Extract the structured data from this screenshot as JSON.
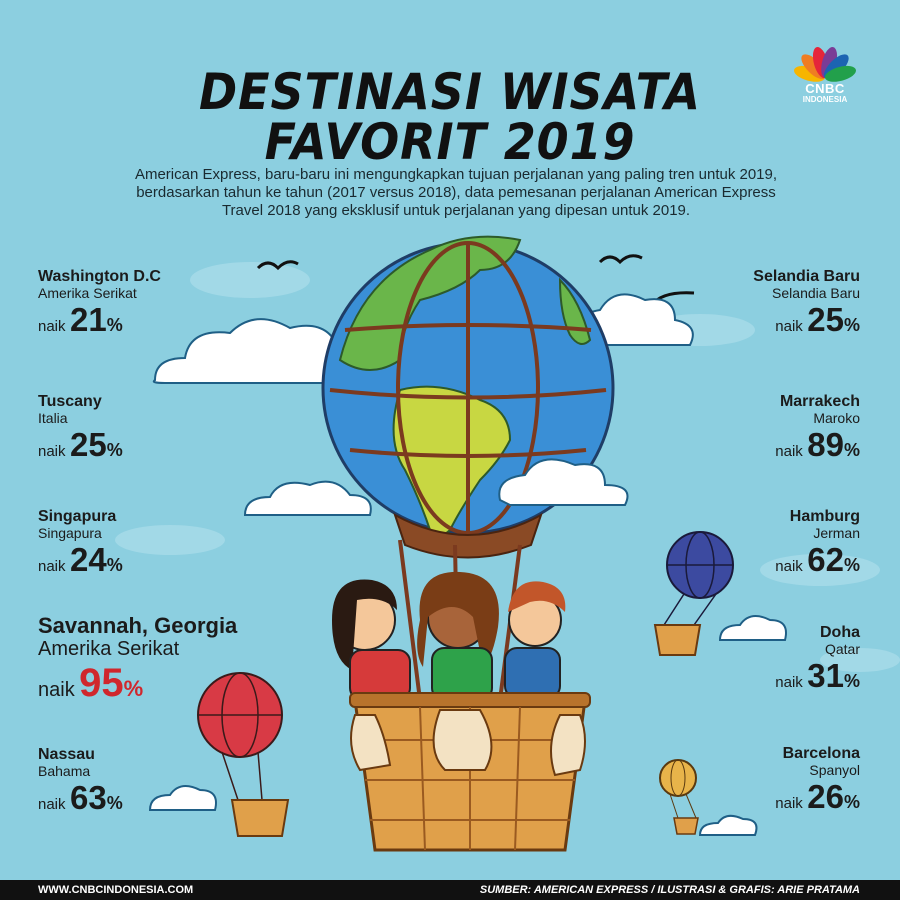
{
  "title_line1": "DESTINASI WISATA",
  "title_line2": "FAVORIT 2019",
  "intro": "American Express, baru-baru ini mengungkapkan tujuan perjalanan yang paling tren untuk 2019, berdasarkan tahun ke tahun (2017 versus 2018), data pemesanan perjalanan American Express Travel 2018 yang eksklusif untuk perjalanan yang dipesan untuk 2019.",
  "logo": {
    "brand": "CNBC",
    "sub": "INDONESIA",
    "colors": [
      "#f7b500",
      "#ef7d22",
      "#e5263a",
      "#7a3c96",
      "#1c64b2",
      "#22a04b"
    ]
  },
  "naik_label": "naik",
  "percent_sign": "%",
  "left_destinations": [
    {
      "city": "Washington D.C",
      "country": "Amerika Serikat",
      "value": "21"
    },
    {
      "city": "Tuscany",
      "country": "Italia",
      "value": "25"
    },
    {
      "city": "Singapura",
      "country": "Singapura",
      "value": "24"
    },
    {
      "city": "Savannah, Georgia",
      "country": "Amerika Serikat",
      "value": "95"
    },
    {
      "city": "Nassau",
      "country": "Bahama",
      "value": "63"
    }
  ],
  "right_destinations": [
    {
      "city": "Selandia Baru",
      "country": "Selandia Baru",
      "value": "25"
    },
    {
      "city": "Marrakech",
      "country": "Maroko",
      "value": "89"
    },
    {
      "city": "Hamburg",
      "country": "Jerman",
      "value": "62"
    },
    {
      "city": "Doha",
      "country": "Qatar",
      "value": "31"
    },
    {
      "city": "Barcelona",
      "country": "Spanyol",
      "value": "26"
    }
  ],
  "highlight_color": "#d0272d",
  "footer": {
    "website": "WWW.CNBCINDONESIA.COM",
    "source": "SUMBER: AMERICAN EXPRESS / ILUSTRASI & GRAFIS: ARIE PRATAMA"
  }
}
